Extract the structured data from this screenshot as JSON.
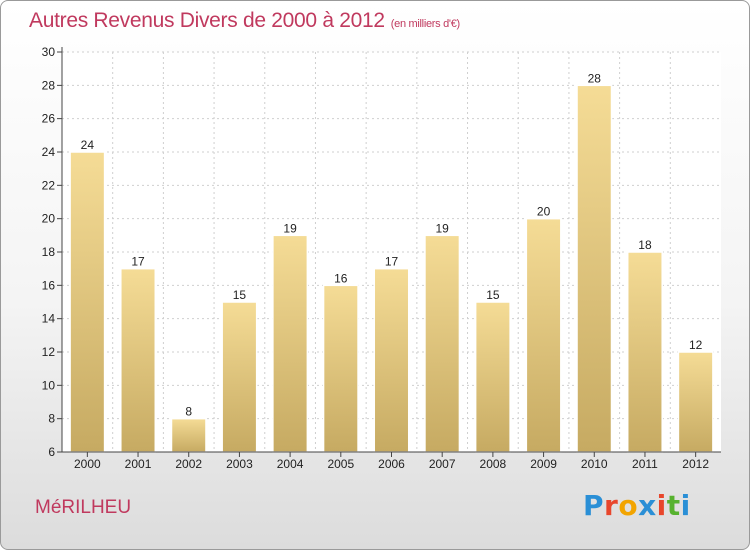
{
  "header": {
    "title": "Autres Revenus Divers de 2000 à 2012",
    "unit": "(en milliers d'€)"
  },
  "footer": {
    "commune": "MéRILHEU",
    "logo_letters": [
      "P",
      "r",
      "o",
      "x",
      "i",
      "t",
      "i"
    ],
    "logo_colors": [
      "#2a8fd6",
      "#e8462c",
      "#f2a400",
      "#2a8fd6",
      "#e8462c",
      "#57b22f",
      "#2a8fd6"
    ]
  },
  "chart_data": {
    "type": "bar",
    "categories": [
      "2000",
      "2001",
      "2002",
      "2003",
      "2004",
      "2005",
      "2006",
      "2007",
      "2008",
      "2009",
      "2010",
      "2011",
      "2012"
    ],
    "values": [
      24,
      17,
      8,
      15,
      19,
      16,
      17,
      19,
      15,
      20,
      28,
      18,
      12
    ],
    "title": "Autres Revenus Divers de 2000 à 2012",
    "subtitle": "(en milliers d'€)",
    "xlabel": "",
    "ylabel": "",
    "ylim": [
      6,
      30
    ],
    "yticks": [
      6,
      8,
      10,
      12,
      14,
      16,
      18,
      20,
      22,
      24,
      26,
      28,
      30
    ],
    "grid": true,
    "bar_color_top": "#f5dc96",
    "bar_color_bottom": "#c6aa62"
  }
}
